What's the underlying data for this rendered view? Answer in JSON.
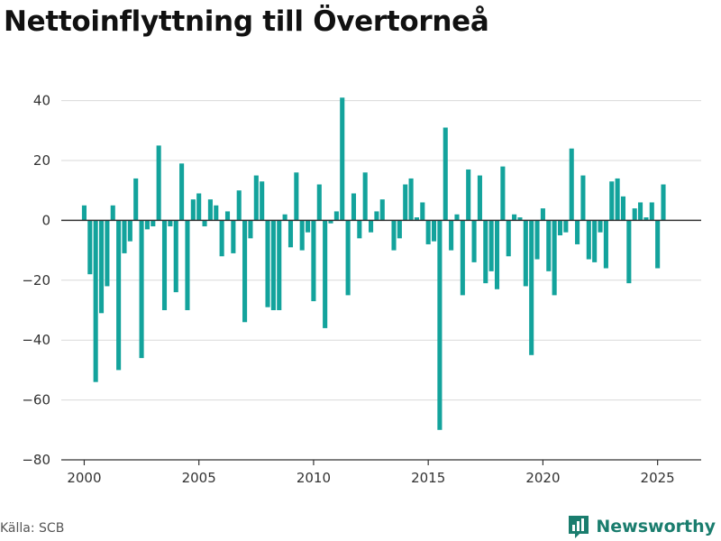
{
  "title": "Nettoinflyttning till Övertorneå",
  "source": "Källa: SCB",
  "brand": {
    "name": "Newsworthy",
    "icon": "newsworthy-logo-icon"
  },
  "colors": {
    "bar": "#13a39c",
    "grid": "#d9d9d9",
    "zero_line": "#333333",
    "brand": "#1a7d6e"
  },
  "chart_data": {
    "type": "bar",
    "title": "Nettoinflyttning till Övertorneå",
    "xlabel": "",
    "ylabel": "",
    "ylim": [
      -80,
      45
    ],
    "xlim": [
      1999.0,
      2026.9
    ],
    "yticks": [
      40,
      20,
      0,
      -20,
      -40,
      -60,
      -80
    ],
    "yticklabels": [
      "40",
      "20",
      "0",
      "−20",
      "−40",
      "−60",
      "−80"
    ],
    "xticks": [
      2000,
      2005,
      2010,
      2015,
      2020,
      2025
    ],
    "xticklabels": [
      "2000",
      "2005",
      "2010",
      "2015",
      "2020",
      "2025"
    ],
    "grid": true,
    "x_start_year": 2000,
    "periods_per_year": 4,
    "values": [
      5,
      -18,
      -54,
      -31,
      -22,
      5,
      -50,
      -11,
      -7,
      14,
      -46,
      -3,
      -2,
      25,
      -30,
      -2,
      -24,
      19,
      -30,
      7,
      9,
      -2,
      7,
      5,
      -12,
      3,
      -11,
      10,
      -34,
      -6,
      15,
      13,
      -29,
      -30,
      -30,
      2,
      -9,
      16,
      -10,
      -4,
      -27,
      12,
      -36,
      -1,
      3,
      41,
      -25,
      9,
      -6,
      16,
      -4,
      3,
      7,
      0,
      -10,
      -6,
      12,
      14,
      1,
      6,
      -8,
      -7,
      -70,
      31,
      -10,
      2,
      -25,
      17,
      -14,
      15,
      -21,
      -17,
      -23,
      18,
      -12,
      2,
      1,
      -22,
      -45,
      -13,
      4,
      -17,
      -25,
      -5,
      -4,
      24,
      -8,
      15,
      -13,
      -14,
      -4,
      -16,
      13,
      14,
      8,
      -21,
      4,
      6,
      1,
      6,
      -16,
      12
    ]
  }
}
